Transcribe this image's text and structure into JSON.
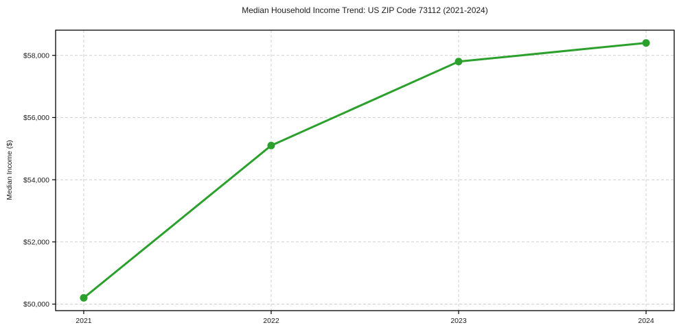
{
  "chart_data": {
    "type": "line",
    "title": "Median Household Income Trend: US ZIP Code 73112 (2021-2024)",
    "xlabel": "",
    "ylabel": "Median Income ($)",
    "x": [
      2021,
      2022,
      2023,
      2024
    ],
    "x_tick_labels": [
      "2021",
      "2022",
      "2023",
      "2024"
    ],
    "series": [
      {
        "name": "Median Household Income",
        "values": [
          50200,
          55100,
          57800,
          58400
        ],
        "color": "#2ca02c",
        "marker": "circle",
        "line_width": 3,
        "marker_radius": 5.5
      }
    ],
    "y_ticks": [
      50000,
      52000,
      54000,
      56000,
      58000
    ],
    "y_tick_labels": [
      "$50,000",
      "$52,000",
      "$54,000",
      "$56,000",
      "$58,000"
    ],
    "xlim": [
      2020.85,
      2024.15
    ],
    "ylim": [
      49790,
      58810
    ],
    "grid": true,
    "grid_style": "dashed",
    "grid_color": "#cfcfcf",
    "spine_color": "#000000",
    "background": "#ffffff",
    "legend_position": "none",
    "tick_font_size": 10.5,
    "title_font_size": 12
  }
}
